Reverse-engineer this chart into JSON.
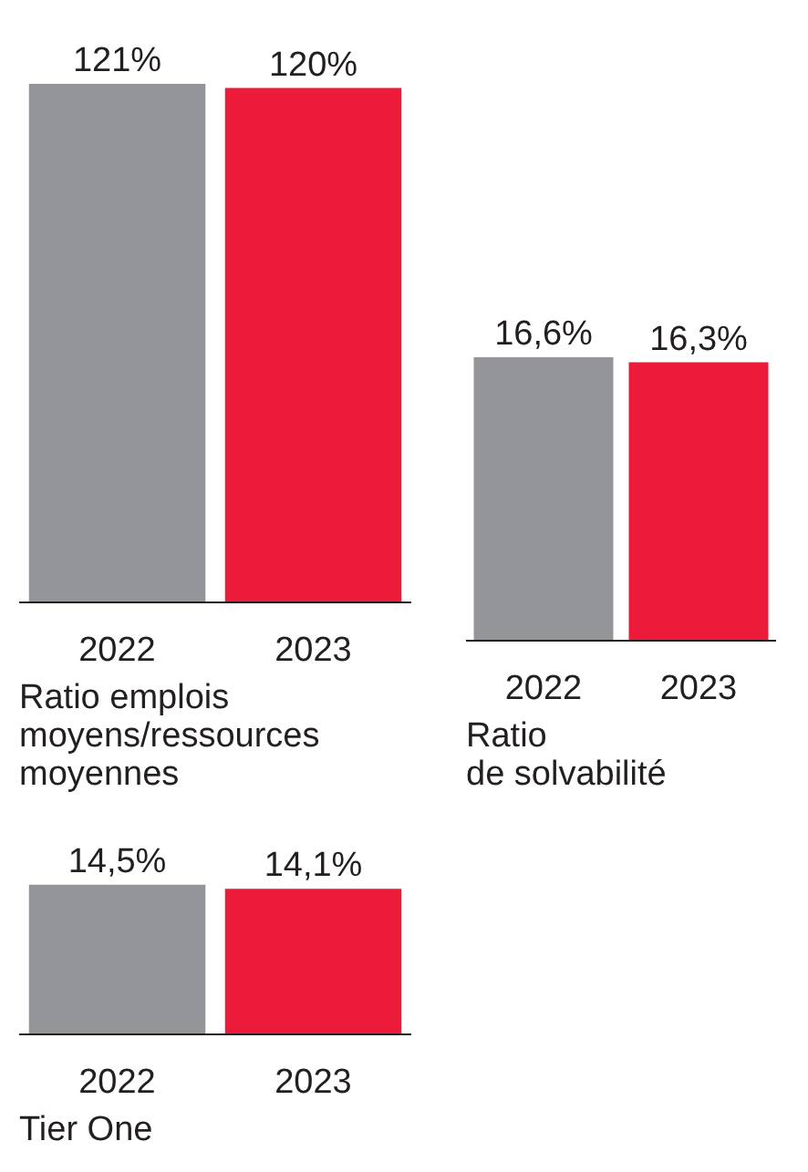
{
  "chart_data": [
    {
      "type": "bar",
      "title": "Ratio emplois\nmoyens/ressources\nmoyennes",
      "categories": [
        "2022",
        "2023"
      ],
      "values": [
        121,
        120
      ],
      "colors": [
        "#939598",
        "#ed1b3a"
      ],
      "value_labels": [
        "121%",
        "120%"
      ],
      "tick_labels": "x",
      "grid": false
    },
    {
      "type": "bar",
      "title": "Ratio\nde solvabilité",
      "categories": [
        "2022",
        "2023"
      ],
      "values": [
        16.6,
        16.3
      ],
      "colors": [
        "#939598",
        "#ed1b3a"
      ],
      "value_labels": [
        "16,6%",
        "16,3%"
      ],
      "tick_labels": "x",
      "grid": false
    },
    {
      "type": "bar",
      "title": "Tier One",
      "categories": [
        "2022",
        "2023"
      ],
      "values": [
        14.5,
        14.1
      ],
      "colors": [
        "#939598",
        "#ed1b3a"
      ],
      "value_labels": [
        "14,5%",
        "14,1%"
      ],
      "tick_labels": "x",
      "grid": false
    }
  ]
}
